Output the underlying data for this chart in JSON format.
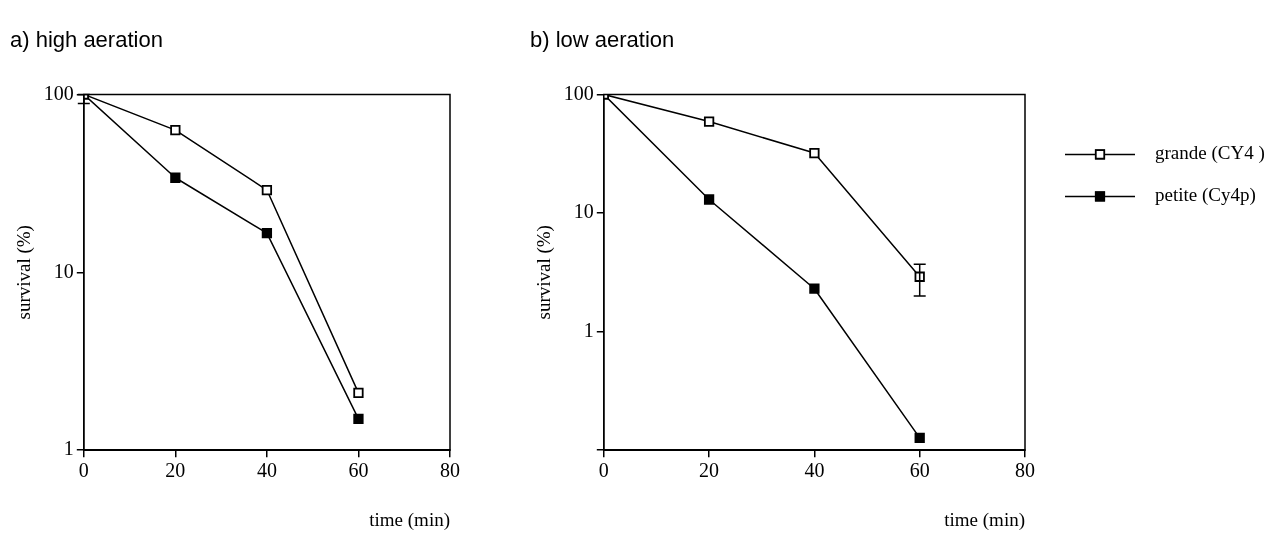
{
  "chart_data": [
    {
      "type": "line",
      "title": "a) high aeration",
      "xlabel": "time (min)",
      "ylabel": "survival (%)",
      "x": [
        0,
        20,
        40,
        60
      ],
      "series": [
        {
          "color": "#000000",
          "values": [
            100,
            63,
            29,
            2.1
          ],
          "errors": [
            [
              89,
              100
            ],
            null,
            null,
            null
          ]
        },
        {
          "color": "#000000",
          "values": [
            100,
            34,
            16.6,
            1.5
          ]
        }
      ],
      "xlim": [
        0,
        80
      ],
      "xticks": [
        0,
        20,
        40,
        60,
        80
      ],
      "ylim": [
        1,
        100
      ],
      "yticks": [
        1,
        10,
        100
      ],
      "log": "y",
      "grid": false,
      "legend": false,
      "marker": "square",
      "line_style": "solid"
    },
    {
      "type": "line",
      "title": "b) low aeration",
      "xlabel": "time (min)",
      "ylabel": "survival (%)",
      "x": [
        0,
        20,
        40,
        60
      ],
      "series": [
        {
          "name": "grande (CY4 )",
          "color": "#000000",
          "values": [
            100,
            59,
            32,
            2.9
          ],
          "errors": [
            null,
            null,
            null,
            [
              2.0,
              3.7
            ]
          ]
        },
        {
          "name": "petite (Cy4p)",
          "color": "#000000",
          "values": [
            100,
            13,
            2.3,
            0.127
          ]
        }
      ],
      "xlim": [
        0,
        80
      ],
      "xticks": [
        0,
        20,
        40,
        60,
        80
      ],
      "ylim": [
        0.1,
        100
      ],
      "yticks": [
        {
          "value": 0.1,
          "label": null
        },
        1,
        10,
        100
      ],
      "log": "y",
      "grid": false,
      "legend": "right",
      "marker": "square",
      "line_style": "solid"
    }
  ]
}
